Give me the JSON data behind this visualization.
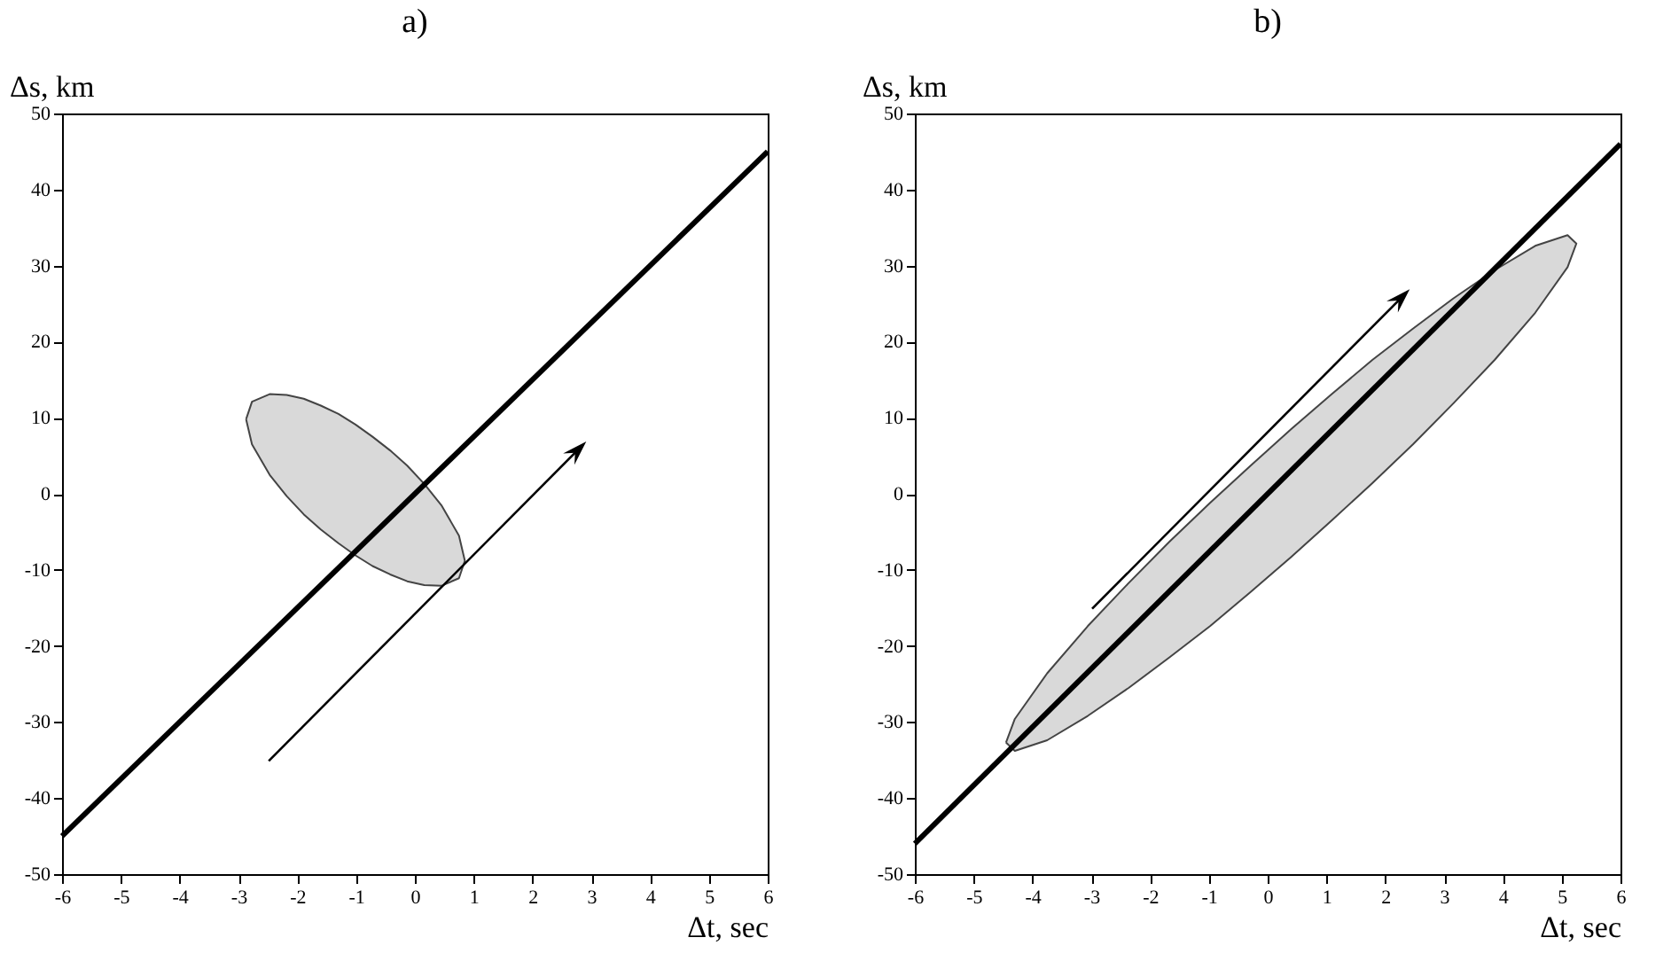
{
  "chart_data": [
    {
      "type": "line",
      "title": "a)",
      "xlabel": "Δt, sec",
      "ylabel": "Δs, km",
      "xlim": [
        -6,
        6
      ],
      "xticks": [
        -6,
        -5,
        -4,
        -3,
        -2,
        -1,
        0,
        1,
        2,
        3,
        4,
        5,
        6
      ],
      "ylim": [
        -50,
        50
      ],
      "yticks": [
        -50,
        -40,
        -30,
        -20,
        -10,
        0,
        10,
        20,
        30,
        40,
        50
      ],
      "grid": false,
      "marker": "none",
      "line_style": "solid",
      "series": [
        {
          "type": "area",
          "color": "#d9d9d9",
          "x": [
            -2.87,
            -2.77,
            -2.47,
            -2.18,
            -1.89,
            -1.6,
            -1.3,
            -1.01,
            -0.72,
            -0.42,
            -0.13,
            0.16,
            0.45,
            0.75,
            0.85,
            0.75,
            0.45,
            0.16,
            -0.13,
            -0.42,
            -0.72,
            -1.01,
            -1.3,
            -1.6,
            -1.89,
            -2.18,
            -2.47,
            -2.77,
            -2.87
          ],
          "values": [
            9.8,
            12.1,
            13.1,
            13.0,
            12.5,
            11.6,
            10.5,
            9.1,
            7.5,
            5.7,
            3.7,
            1.3,
            -1.5,
            -5.5,
            -8.8,
            -11.1,
            -12.1,
            -12.0,
            -11.5,
            -10.6,
            -9.5,
            -8.1,
            -6.5,
            -4.7,
            -2.7,
            -0.3,
            2.5,
            6.5,
            9.8
          ]
        },
        {
          "type": "line",
          "color": "#000000",
          "x": [
            -6,
            6
          ],
          "values": [
            -45,
            45
          ]
        }
      ]
    },
    {
      "type": "line",
      "title": "b)",
      "xlabel": "Δt, sec",
      "ylabel": "Δs, km",
      "xlim": [
        -6,
        6
      ],
      "xticks": [
        -6,
        -5,
        -4,
        -3,
        -2,
        -1,
        0,
        1,
        2,
        3,
        4,
        5,
        6
      ],
      "ylim": [
        -50,
        50
      ],
      "yticks": [
        -50,
        -40,
        -30,
        -20,
        -10,
        0,
        10,
        20,
        30,
        40,
        50
      ],
      "grid": false,
      "marker": "none",
      "line_style": "solid",
      "series": [
        {
          "type": "area",
          "color": "#d9d9d9",
          "x": [
            -4.45,
            -4.3,
            -3.75,
            -3.06,
            -2.36,
            -1.67,
            -0.98,
            -0.29,
            0.4,
            1.09,
            1.78,
            2.47,
            3.16,
            3.86,
            4.55,
            5.1,
            5.25,
            5.1,
            4.55,
            3.86,
            3.16,
            2.47,
            1.78,
            1.09,
            0.4,
            -0.29,
            -0.98,
            -1.67,
            -2.36,
            -3.06,
            -3.75,
            -4.3,
            -4.45
          ],
          "values": [
            -32.7,
            -29.6,
            -23.6,
            -17.4,
            -11.7,
            -6.3,
            -1.2,
            3.7,
            8.5,
            13.1,
            17.6,
            21.7,
            25.7,
            29.4,
            32.6,
            34.0,
            32.9,
            29.8,
            23.8,
            17.6,
            11.9,
            6.5,
            1.4,
            -3.5,
            -8.3,
            -12.9,
            -17.4,
            -21.5,
            -25.5,
            -29.2,
            -32.4,
            -33.8,
            -32.7
          ]
        },
        {
          "type": "line",
          "color": "#000000",
          "x": [
            -6,
            6
          ],
          "values": [
            -46,
            46
          ]
        }
      ]
    }
  ]
}
